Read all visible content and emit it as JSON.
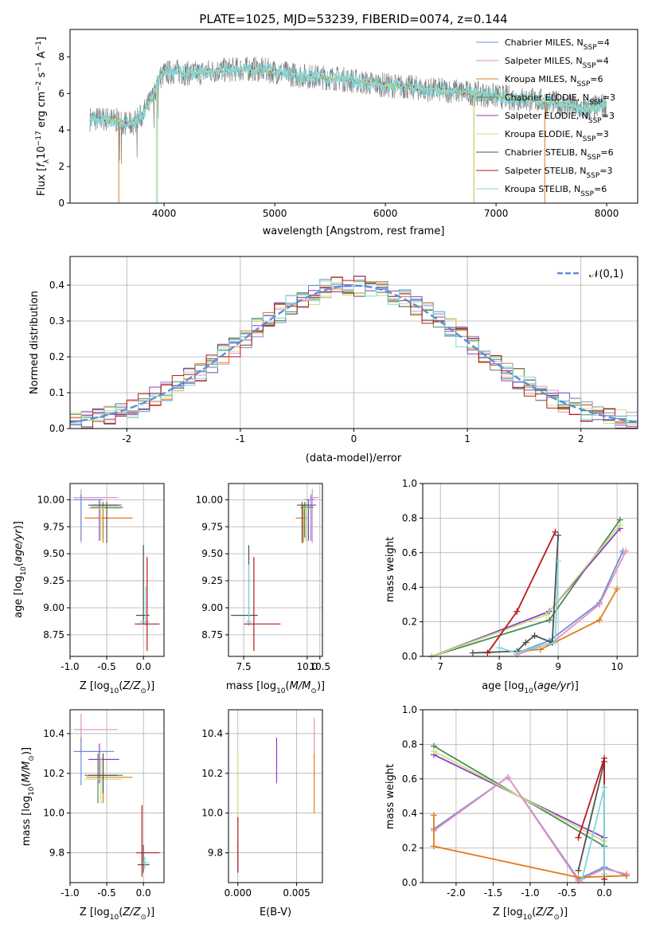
{
  "title": "PLATE=1025, MJD=53239, FIBERID=0074, z=0.144",
  "colors": {
    "blue": "#6b8fd6",
    "pink": "#e68fbf",
    "orange": "#e07a1e",
    "darkgreen": "#4b8a5a",
    "purple": "#8c3ec7",
    "yellowgreen": "#c8e07a",
    "gray": "#505050",
    "red": "#b81a1a",
    "cyan": "#7fd7db",
    "spectrum": "#808080"
  },
  "chart_data": [
    {
      "type": "line",
      "id": "spectrum",
      "xlabel": "wavelength [Angstrom, rest frame]",
      "ylabel": "Flux [f_λ10^-17 erg cm^-2 s^-1 A^-1]",
      "xlim": [
        3150,
        8280
      ],
      "ylim": [
        0,
        9.5
      ],
      "xticks": [
        4000,
        5000,
        6000,
        7000,
        8000
      ],
      "yticks": [
        0,
        2,
        4,
        6,
        8
      ],
      "grid": false,
      "legend": "right",
      "series": [
        {
          "name": "Chabrier MILES, N_SSP=4",
          "color": "blue"
        },
        {
          "name": "Salpeter MILES, N_SSP=4",
          "color": "pink"
        },
        {
          "name": "Kroupa MILES, N_SSP=6",
          "color": "orange"
        },
        {
          "name": "Chabrier ELODIE, N_SSP=3",
          "color": "darkgreen"
        },
        {
          "name": "Salpeter ELODIE, N_SSP=3",
          "color": "purple"
        },
        {
          "name": "Kroupa ELODIE, N_SSP=3",
          "color": "yellowgreen"
        },
        {
          "name": "Chabrier STELIB, N_SSP=6",
          "color": "gray"
        },
        {
          "name": "Salpeter STELIB, N_SSP=3",
          "color": "red"
        },
        {
          "name": "Kroupa STELIB, N_SSP=6",
          "color": "cyan"
        }
      ],
      "continuum": [
        [
          3330,
          4.6
        ],
        [
          3500,
          4.6
        ],
        [
          3700,
          4.3
        ],
        [
          3800,
          4.8
        ],
        [
          3900,
          5.8
        ],
        [
          3950,
          6.8
        ],
        [
          4000,
          7.1
        ],
        [
          4100,
          7.2
        ],
        [
          4200,
          7.1
        ],
        [
          4300,
          7.1
        ],
        [
          4400,
          7.2
        ],
        [
          4600,
          7.3
        ],
        [
          4800,
          7.35
        ],
        [
          5000,
          7.2
        ],
        [
          5200,
          7.0
        ],
        [
          5400,
          6.9
        ],
        [
          5600,
          6.8
        ],
        [
          5800,
          6.6
        ],
        [
          6000,
          6.45
        ],
        [
          6200,
          6.35
        ],
        [
          6400,
          6.2
        ],
        [
          6600,
          6.15
        ],
        [
          6800,
          6.0
        ],
        [
          7000,
          5.85
        ],
        [
          7200,
          5.7
        ],
        [
          7400,
          5.6
        ],
        [
          7600,
          5.4
        ],
        [
          7800,
          5.1
        ],
        [
          8000,
          5.4
        ]
      ]
    },
    {
      "type": "line",
      "id": "residuals",
      "xlabel": "(data-model)/error",
      "ylabel": "Normed distribution",
      "xlim": [
        -2.5,
        2.5
      ],
      "ylim": [
        0,
        0.48
      ],
      "xticks": [
        -2,
        -1,
        0,
        1,
        2
      ],
      "yticks": [
        0,
        0.1,
        0.2,
        0.3,
        0.4
      ],
      "grid": true,
      "legend": "top-right",
      "series": [
        {
          "name": "𝒩(0,1)",
          "style": "dashed",
          "color": "#5b8ed6"
        }
      ]
    },
    {
      "type": "scatter",
      "id": "age-Z",
      "xlabel": "Z [log10(Z/Z⊙)]",
      "ylabel": "age  [log10(age/yr)]",
      "xlim": [
        -1.0,
        0.28
      ],
      "ylim": [
        8.55,
        10.15
      ],
      "xticks": [
        -1.0,
        -0.5,
        0.0
      ],
      "yticks": [
        8.75,
        9.0,
        9.25,
        9.5,
        9.75,
        10.0
      ],
      "grid": true,
      "points": [
        {
          "x": -0.85,
          "y": 10.02,
          "xe": [
            -0.95,
            -0.35
          ],
          "ye": [
            9.6,
            10.1
          ],
          "c": "pink"
        },
        {
          "x": -0.85,
          "y": 10.0,
          "xe": [
            -0.95,
            -0.55
          ],
          "ye": [
            9.62,
            10.05
          ],
          "c": "blue"
        },
        {
          "x": -0.6,
          "y": 9.95,
          "xe": [
            -0.75,
            -0.3
          ],
          "ye": [
            9.62,
            10.0
          ],
          "c": "purple"
        },
        {
          "x": -0.55,
          "y": 9.93,
          "xe": [
            -0.72,
            -0.28
          ],
          "ye": [
            9.65,
            9.98
          ],
          "c": "darkgreen"
        },
        {
          "x": -0.55,
          "y": 9.83,
          "xe": [
            -0.8,
            -0.15
          ],
          "ye": [
            9.6,
            9.95
          ],
          "c": "orange"
        },
        {
          "x": -0.58,
          "y": 9.92,
          "xe": [
            -0.75,
            -0.3
          ],
          "ye": [
            9.62,
            9.98
          ],
          "c": "yellowgreen"
        },
        {
          "x": -0.5,
          "y": 9.95,
          "xe": [
            -0.7,
            -0.35
          ],
          "ye": [
            9.6,
            9.98
          ],
          "c": "gray"
        },
        {
          "x": 0.0,
          "y": 8.93,
          "xe": [
            -0.1,
            0.08
          ],
          "ye": [
            8.85,
            9.58
          ],
          "c": "gray"
        },
        {
          "x": 0.03,
          "y": 8.87,
          "xe": [
            -0.05,
            0.08
          ],
          "ye": [
            8.83,
            9.2
          ],
          "c": "cyan"
        },
        {
          "x": 0.05,
          "y": 8.85,
          "xe": [
            -0.12,
            0.22
          ],
          "ye": [
            8.6,
            9.47
          ],
          "c": "red"
        }
      ]
    },
    {
      "type": "scatter",
      "id": "age-mass",
      "xlabel": "mass [log10(M/M⊙)]",
      "ylabel": "",
      "xlim": [
        6.9,
        10.6
      ],
      "ylim": [
        8.55,
        10.15
      ],
      "xticks": [
        7.5,
        10.0,
        10.5
      ],
      "yticks": [
        8.75,
        9.0,
        9.25,
        9.5,
        9.75,
        10.0
      ],
      "grid": true,
      "points": [
        {
          "x": 10.2,
          "y": 10.02,
          "c": "pink",
          "xe": [
            10.1,
            10.45
          ],
          "ye": [
            9.6,
            10.1
          ]
        },
        {
          "x": 10.15,
          "y": 10.0,
          "c": "blue",
          "xe": [
            9.9,
            10.3
          ],
          "ye": [
            9.62,
            10.05
          ]
        },
        {
          "x": 10.05,
          "y": 9.95,
          "c": "purple",
          "xe": [
            9.85,
            10.35
          ],
          "ye": [
            9.62,
            10.0
          ]
        },
        {
          "x": 9.9,
          "y": 9.93,
          "c": "darkgreen",
          "xe": [
            9.75,
            10.25
          ],
          "ye": [
            9.65,
            9.98
          ]
        },
        {
          "x": 9.85,
          "y": 9.83,
          "c": "orange",
          "xe": [
            9.55,
            10.0
          ],
          "ye": [
            9.6,
            9.95
          ]
        },
        {
          "x": 9.95,
          "y": 9.92,
          "c": "yellowgreen",
          "xe": [
            9.7,
            10.2
          ],
          "ye": [
            9.62,
            9.98
          ]
        },
        {
          "x": 9.8,
          "y": 9.95,
          "c": "gray",
          "xe": [
            9.6,
            10.0
          ],
          "ye": [
            9.6,
            9.98
          ]
        },
        {
          "x": 7.7,
          "y": 8.93,
          "c": "gray",
          "xe": [
            7.0,
            8.05
          ],
          "ye": [
            8.85,
            9.58
          ]
        },
        {
          "x": 7.7,
          "y": 8.87,
          "c": "cyan",
          "xe": [
            7.6,
            7.8
          ],
          "ye": [
            8.83,
            9.4
          ]
        },
        {
          "x": 7.9,
          "y": 8.85,
          "c": "red",
          "xe": [
            7.5,
            8.95
          ],
          "ye": [
            8.6,
            9.47
          ]
        }
      ]
    },
    {
      "type": "line",
      "id": "weight-age",
      "xlabel": "age  [log10(age/yr)]",
      "ylabel": "mass weight",
      "xlim": [
        6.7,
        10.35
      ],
      "ylim": [
        0,
        1.0
      ],
      "xticks": [
        7,
        8,
        9,
        10
      ],
      "yticks": [
        0,
        0.2,
        0.4,
        0.6,
        0.8,
        1.0
      ],
      "grid": true,
      "series": [
        {
          "c": "darkgreen",
          "pts": [
            [
              6.85,
              0.0
            ],
            [
              8.85,
              0.21
            ],
            [
              10.05,
              0.79
            ]
          ]
        },
        {
          "c": "purple",
          "pts": [
            [
              6.85,
              0.0
            ],
            [
              8.85,
              0.26
            ],
            [
              10.05,
              0.74
            ]
          ]
        },
        {
          "c": "yellowgreen",
          "pts": [
            [
              6.85,
              0.0
            ],
            [
              8.8,
              0.24
            ],
            [
              10.05,
              0.76
            ]
          ]
        },
        {
          "c": "blue",
          "pts": [
            [
              8.3,
              0.02
            ],
            [
              8.85,
              0.09
            ],
            [
              9.7,
              0.31
            ],
            [
              10.1,
              0.61
            ]
          ]
        },
        {
          "c": "pink",
          "pts": [
            [
              8.3,
              0.01
            ],
            [
              8.9,
              0.08
            ],
            [
              9.7,
              0.3
            ],
            [
              10.15,
              0.61
            ]
          ]
        },
        {
          "c": "orange",
          "pts": [
            [
              8.3,
              0.03
            ],
            [
              8.7,
              0.04
            ],
            [
              9.7,
              0.21
            ],
            [
              10.0,
              0.39
            ]
          ]
        },
        {
          "c": "gray",
          "pts": [
            [
              7.55,
              0.02
            ],
            [
              8.3,
              0.03
            ],
            [
              8.45,
              0.08
            ],
            [
              8.6,
              0.12
            ],
            [
              8.9,
              0.08
            ],
            [
              9.0,
              0.7
            ]
          ]
        },
        {
          "c": "red",
          "pts": [
            [
              7.8,
              0.02
            ],
            [
              8.3,
              0.26
            ],
            [
              8.95,
              0.72
            ]
          ]
        },
        {
          "c": "cyan",
          "pts": [
            [
              8.0,
              0.05
            ],
            [
              8.3,
              0.02
            ],
            [
              8.6,
              0.05
            ],
            [
              8.95,
              0.08
            ],
            [
              9.0,
              0.55
            ]
          ]
        }
      ]
    },
    {
      "type": "scatter",
      "id": "mass-Z",
      "xlabel": "Z [log10(Z/Z⊙)]",
      "ylabel": "mass [log10(M/M⊙)]",
      "xlim": [
        -1.0,
        0.28
      ],
      "ylim": [
        9.65,
        10.52
      ],
      "xticks": [
        -1.0,
        -0.5,
        0.0
      ],
      "yticks": [
        9.8,
        10.0,
        10.2,
        10.4
      ],
      "grid": true,
      "points": [
        {
          "x": -0.85,
          "y": 10.42,
          "xe": [
            -0.95,
            -0.35
          ],
          "ye": [
            10.3,
            10.5
          ],
          "c": "pink"
        },
        {
          "x": -0.85,
          "y": 10.31,
          "xe": [
            -0.95,
            -0.4
          ],
          "ye": [
            10.14,
            10.38
          ],
          "c": "blue"
        },
        {
          "x": -0.6,
          "y": 10.27,
          "xe": [
            -0.75,
            -0.33
          ],
          "ye": [
            10.15,
            10.35
          ],
          "c": "purple"
        },
        {
          "x": -0.62,
          "y": 10.19,
          "xe": [
            -0.8,
            -0.28
          ],
          "ye": [
            10.05,
            10.3
          ],
          "c": "darkgreen"
        },
        {
          "x": -0.55,
          "y": 10.18,
          "xe": [
            -0.78,
            -0.15
          ],
          "ye": [
            10.05,
            10.3
          ],
          "c": "orange"
        },
        {
          "x": -0.58,
          "y": 10.17,
          "xe": [
            -0.8,
            -0.3
          ],
          "ye": [
            10.05,
            10.28
          ],
          "c": "yellowgreen"
        },
        {
          "x": -0.55,
          "y": 10.19,
          "xe": [
            -0.75,
            -0.35
          ],
          "ye": [
            10.1,
            10.3
          ],
          "c": "gray"
        },
        {
          "x": 0.0,
          "y": 9.74,
          "xe": [
            -0.08,
            0.08
          ],
          "ye": [
            9.7,
            9.84
          ],
          "c": "gray"
        },
        {
          "x": 0.02,
          "y": 9.75,
          "xe": [
            -0.03,
            0.08
          ],
          "ye": [
            9.72,
            9.78
          ],
          "c": "cyan"
        },
        {
          "x": -0.02,
          "y": 9.8,
          "xe": [
            -0.1,
            0.22
          ],
          "ye": [
            9.68,
            10.04
          ],
          "c": "red"
        }
      ]
    },
    {
      "type": "scatter",
      "id": "mass-EBV",
      "xlabel": "E(B-V)",
      "ylabel": "",
      "xlim": [
        -0.0008,
        0.0072
      ],
      "ylim": [
        9.65,
        10.52
      ],
      "xticks": [
        0.0,
        0.005
      ],
      "yticks": [
        9.8,
        10.0,
        10.2,
        10.4
      ],
      "grid": true,
      "points": [
        {
          "x": 0.0,
          "y": 9.8,
          "ye": [
            9.7,
            9.85
          ],
          "c": "blue"
        },
        {
          "x": 0.0,
          "y": 10.1,
          "ye": [
            9.95,
            10.3
          ],
          "c": "yellowgreen"
        },
        {
          "x": 0.0,
          "y": 9.85,
          "ye": [
            9.7,
            9.98
          ],
          "c": "red"
        },
        {
          "x": 0.0033,
          "y": 10.27,
          "ye": [
            10.15,
            10.38
          ],
          "c": "purple"
        },
        {
          "x": 0.0065,
          "y": 10.4,
          "ye": [
            10.3,
            10.48
          ],
          "c": "pink"
        },
        {
          "x": 0.0065,
          "y": 10.2,
          "ye": [
            10.0,
            10.3
          ],
          "c": "orange"
        }
      ]
    },
    {
      "type": "line",
      "id": "weight-Z",
      "xlabel": "Z [log10(Z/Z⊙)]",
      "ylabel": "mass weight",
      "xlim": [
        -2.45,
        0.45
      ],
      "ylim": [
        0,
        1.0
      ],
      "xticks": [
        -2.0,
        -1.5,
        -1.0,
        -0.5,
        0.0
      ],
      "yticks": [
        0,
        0.2,
        0.4,
        0.6,
        0.8,
        1.0
      ],
      "grid": true,
      "series": [
        {
          "c": "darkgreen",
          "pts": [
            [
              -2.3,
              0.79
            ],
            [
              0.0,
              0.21
            ]
          ]
        },
        {
          "c": "purple",
          "pts": [
            [
              -2.3,
              0.74
            ],
            [
              0.0,
              0.26
            ]
          ]
        },
        {
          "c": "yellowgreen",
          "pts": [
            [
              -2.3,
              0.76
            ],
            [
              0.0,
              0.24
            ]
          ]
        },
        {
          "c": "blue",
          "pts": [
            [
              -2.3,
              0.31
            ],
            [
              -1.3,
              0.61
            ],
            [
              -0.35,
              0.02
            ],
            [
              0.0,
              0.09
            ],
            [
              0.3,
              0.04
            ]
          ]
        },
        {
          "c": "pink",
          "pts": [
            [
              -2.3,
              0.3
            ],
            [
              -1.3,
              0.61
            ],
            [
              -0.35,
              0.01
            ],
            [
              0.0,
              0.08
            ],
            [
              0.3,
              0.05
            ]
          ]
        },
        {
          "c": "orange",
          "pts": [
            [
              -2.3,
              0.39
            ],
            [
              -2.3,
              0.21
            ],
            [
              -0.35,
              0.03
            ],
            [
              0.3,
              0.04
            ]
          ]
        },
        {
          "c": "gray",
          "pts": [
            [
              -0.35,
              0.07
            ],
            [
              0.0,
              0.7
            ],
            [
              0.0,
              0.02
            ]
          ]
        },
        {
          "c": "red",
          "pts": [
            [
              -0.35,
              0.26
            ],
            [
              0.0,
              0.72
            ],
            [
              0.0,
              0.02
            ]
          ]
        },
        {
          "c": "cyan",
          "pts": [
            [
              -0.3,
              0.02
            ],
            [
              0.0,
              0.55
            ],
            [
              0.0,
              0.05
            ]
          ]
        }
      ]
    }
  ]
}
